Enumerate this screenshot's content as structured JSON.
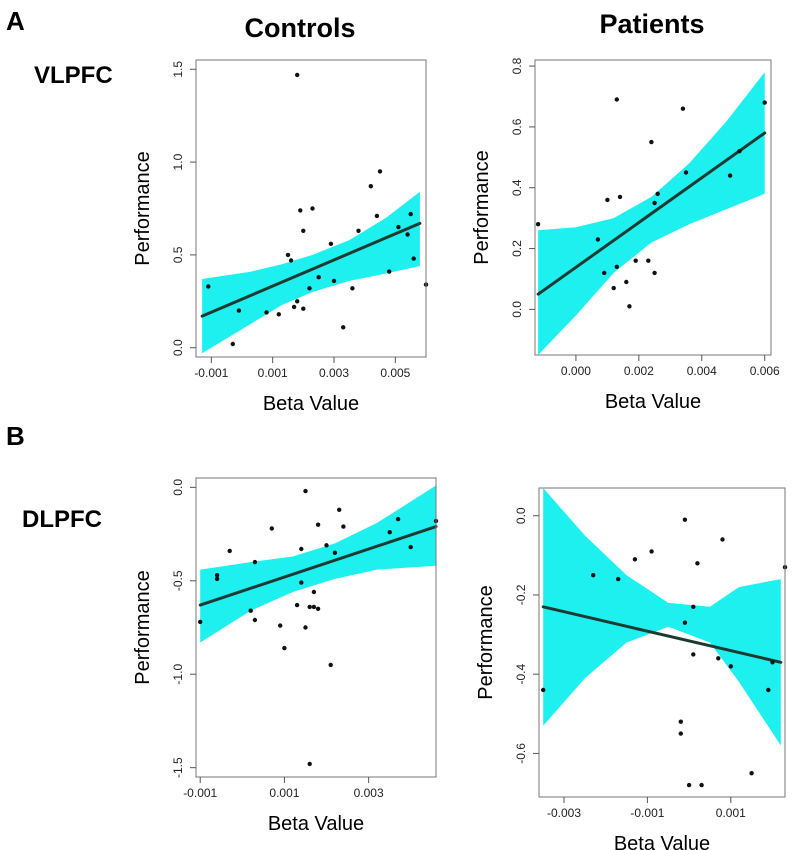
{
  "figure": {
    "panel_labels": [
      "A",
      "B"
    ],
    "column_titles": [
      "Controls",
      "Patients"
    ],
    "row_labels": [
      "VLPFC",
      "DLPFC"
    ],
    "band_color": "#1ef0f0",
    "line_color": "#1c3a32",
    "point_color": "#111111"
  },
  "chart_data": [
    {
      "type": "scatter",
      "region": "VLPFC",
      "group": "Controls",
      "xlabel": "Beta Value",
      "ylabel": "Performance",
      "xlim": [
        -0.0015,
        0.006
      ],
      "ylim": [
        -0.05,
        1.55
      ],
      "xticks": [
        -0.001,
        0.001,
        0.003,
        0.005
      ],
      "xtick_labels": [
        "-0.001",
        "0.001",
        "0.003",
        "0.005"
      ],
      "yticks": [
        0.0,
        0.5,
        1.0,
        1.5
      ],
      "ytick_labels": [
        "0.0",
        "0.5",
        "1.0",
        "1.5"
      ],
      "fit": {
        "x": [
          -0.0013,
          0.0058
        ],
        "y": [
          0.17,
          0.67
        ]
      },
      "band": {
        "x": [
          -0.0013,
          0.0003,
          0.0013,
          0.0023,
          0.0035,
          0.0047,
          0.0058
        ],
        "upper": [
          0.37,
          0.41,
          0.45,
          0.5,
          0.58,
          0.7,
          0.84
        ],
        "lower": [
          -0.03,
          0.13,
          0.23,
          0.3,
          0.36,
          0.4,
          0.44
        ]
      },
      "points": [
        {
          "x": -0.0011,
          "y": 0.33
        },
        {
          "x": -0.0003,
          "y": 0.02
        },
        {
          "x": -0.0001,
          "y": 0.2
        },
        {
          "x": 0.0008,
          "y": 0.19
        },
        {
          "x": 0.0012,
          "y": 0.18
        },
        {
          "x": 0.0015,
          "y": 0.5
        },
        {
          "x": 0.0016,
          "y": 0.47
        },
        {
          "x": 0.0017,
          "y": 0.22
        },
        {
          "x": 0.0018,
          "y": 0.25
        },
        {
          "x": 0.0018,
          "y": 1.47
        },
        {
          "x": 0.0019,
          "y": 0.74
        },
        {
          "x": 0.002,
          "y": 0.21
        },
        {
          "x": 0.002,
          "y": 0.63
        },
        {
          "x": 0.0022,
          "y": 0.32
        },
        {
          "x": 0.0023,
          "y": 0.75
        },
        {
          "x": 0.0025,
          "y": 0.38
        },
        {
          "x": 0.0029,
          "y": 0.56
        },
        {
          "x": 0.003,
          "y": 0.36
        },
        {
          "x": 0.0033,
          "y": 0.11
        },
        {
          "x": 0.0036,
          "y": 0.32
        },
        {
          "x": 0.0038,
          "y": 0.63
        },
        {
          "x": 0.0042,
          "y": 0.87
        },
        {
          "x": 0.0044,
          "y": 0.71
        },
        {
          "x": 0.0045,
          "y": 0.95
        },
        {
          "x": 0.0048,
          "y": 0.41
        },
        {
          "x": 0.0051,
          "y": 0.65
        },
        {
          "x": 0.0054,
          "y": 0.61
        },
        {
          "x": 0.0055,
          "y": 0.72
        },
        {
          "x": 0.0056,
          "y": 0.48
        },
        {
          "x": 0.006,
          "y": 0.34
        }
      ]
    },
    {
      "type": "scatter",
      "region": "VLPFC",
      "group": "Patients",
      "xlabel": "Beta Value",
      "ylabel": "Performance",
      "xlim": [
        -0.0013,
        0.0062
      ],
      "ylim": [
        -0.15,
        0.82
      ],
      "xticks": [
        0.0,
        0.002,
        0.004,
        0.006
      ],
      "xtick_labels": [
        "0.000",
        "0.002",
        "0.004",
        "0.006"
      ],
      "yticks": [
        0.0,
        0.2,
        0.4,
        0.6,
        0.8
      ],
      "ytick_labels": [
        "0.0",
        "0.2",
        "0.4",
        "0.6",
        "0.8"
      ],
      "fit": {
        "x": [
          -0.0012,
          0.006
        ],
        "y": [
          0.05,
          0.58
        ]
      },
      "band": {
        "x": [
          -0.0012,
          0.0,
          0.0012,
          0.0024,
          0.0036,
          0.0048,
          0.006
        ],
        "upper": [
          0.26,
          0.27,
          0.3,
          0.37,
          0.48,
          0.62,
          0.78
        ],
        "lower": [
          -0.15,
          -0.02,
          0.12,
          0.22,
          0.28,
          0.33,
          0.38
        ]
      },
      "points": [
        {
          "x": -0.0012,
          "y": 0.28
        },
        {
          "x": 0.0007,
          "y": 0.23
        },
        {
          "x": 0.0009,
          "y": 0.12
        },
        {
          "x": 0.001,
          "y": 0.36
        },
        {
          "x": 0.0012,
          "y": 0.07
        },
        {
          "x": 0.0013,
          "y": 0.69
        },
        {
          "x": 0.0013,
          "y": 0.14
        },
        {
          "x": 0.0014,
          "y": 0.37
        },
        {
          "x": 0.0016,
          "y": 0.09
        },
        {
          "x": 0.0017,
          "y": 0.01
        },
        {
          "x": 0.0019,
          "y": 0.16
        },
        {
          "x": 0.0023,
          "y": 0.16
        },
        {
          "x": 0.0024,
          "y": 0.55
        },
        {
          "x": 0.0025,
          "y": 0.35
        },
        {
          "x": 0.0025,
          "y": 0.12
        },
        {
          "x": 0.0026,
          "y": 0.38
        },
        {
          "x": 0.0034,
          "y": 0.66
        },
        {
          "x": 0.0035,
          "y": 0.45
        },
        {
          "x": 0.0049,
          "y": 0.44
        },
        {
          "x": 0.0052,
          "y": 0.52
        },
        {
          "x": 0.006,
          "y": 0.68
        }
      ]
    },
    {
      "type": "scatter",
      "region": "DLPFC",
      "group": "Controls",
      "xlabel": "Beta Value",
      "ylabel": "Performance",
      "xlim": [
        -0.0011,
        0.0046
      ],
      "ylim": [
        -1.55,
        0.05
      ],
      "xticks": [
        -0.001,
        0.001,
        0.003
      ],
      "xtick_labels": [
        "-0.001",
        "0.001",
        "0.003"
      ],
      "yticks": [
        0.0,
        -0.5,
        -1.0,
        -1.5
      ],
      "ytick_labels": [
        "0.0",
        "-0.5",
        "-1.0",
        "-1.5"
      ],
      "fit": {
        "x": [
          -0.001,
          0.0046
        ],
        "y": [
          -0.63,
          -0.21
        ]
      },
      "band": {
        "x": [
          -0.001,
          0.0002,
          0.0012,
          0.0022,
          0.0032,
          0.0046
        ],
        "upper": [
          -0.44,
          -0.4,
          -0.37,
          -0.3,
          -0.19,
          0.01
        ],
        "lower": [
          -0.83,
          -0.66,
          -0.56,
          -0.49,
          -0.44,
          -0.42
        ]
      },
      "points": [
        {
          "x": -0.001,
          "y": -0.72
        },
        {
          "x": -0.0006,
          "y": -0.47
        },
        {
          "x": -0.0006,
          "y": -0.49
        },
        {
          "x": -0.0003,
          "y": -0.34
        },
        {
          "x": 0.0002,
          "y": -0.66
        },
        {
          "x": 0.0003,
          "y": -0.71
        },
        {
          "x": 0.0003,
          "y": -0.4
        },
        {
          "x": 0.0007,
          "y": -0.22
        },
        {
          "x": 0.0009,
          "y": -0.74
        },
        {
          "x": 0.001,
          "y": -0.86
        },
        {
          "x": 0.0013,
          "y": -0.63
        },
        {
          "x": 0.0014,
          "y": -0.33
        },
        {
          "x": 0.0014,
          "y": -0.51
        },
        {
          "x": 0.0015,
          "y": -0.75
        },
        {
          "x": 0.0015,
          "y": -0.02
        },
        {
          "x": 0.0016,
          "y": -0.64
        },
        {
          "x": 0.0017,
          "y": -0.64
        },
        {
          "x": 0.0016,
          "y": -1.48
        },
        {
          "x": 0.0017,
          "y": -0.56
        },
        {
          "x": 0.0018,
          "y": -0.65
        },
        {
          "x": 0.0018,
          "y": -0.2
        },
        {
          "x": 0.002,
          "y": -0.31
        },
        {
          "x": 0.0021,
          "y": -0.95
        },
        {
          "x": 0.0022,
          "y": -0.35
        },
        {
          "x": 0.0023,
          "y": -0.12
        },
        {
          "x": 0.0024,
          "y": -0.21
        },
        {
          "x": 0.0035,
          "y": -0.24
        },
        {
          "x": 0.0037,
          "y": -0.17
        },
        {
          "x": 0.004,
          "y": -0.32
        },
        {
          "x": 0.0046,
          "y": -0.18
        }
      ]
    },
    {
      "type": "scatter",
      "region": "DLPFC",
      "group": "Patients",
      "xlabel": "Beta Value",
      "ylabel": "Performance",
      "xlim": [
        -0.0036,
        0.0023
      ],
      "ylim": [
        -0.71,
        0.07
      ],
      "xticks": [
        -0.003,
        -0.001,
        0.001
      ],
      "xtick_labels": [
        "-0.003",
        "-0.001",
        "0.001"
      ],
      "yticks": [
        0.0,
        -0.2,
        -0.4,
        -0.6
      ],
      "ytick_labels": [
        "0.0",
        "-0.2",
        "-0.4",
        "-0.6"
      ],
      "fit": {
        "x": [
          -0.0035,
          0.0022
        ],
        "y": [
          -0.23,
          -0.37
        ]
      },
      "band": {
        "x": [
          -0.0035,
          -0.0025,
          -0.0015,
          -0.0005,
          0.0005,
          0.0012,
          0.0022
        ],
        "upper": [
          0.07,
          -0.05,
          -0.15,
          -0.22,
          -0.23,
          -0.18,
          -0.16
        ],
        "lower": [
          -0.53,
          -0.41,
          -0.32,
          -0.28,
          -0.32,
          -0.42,
          -0.58
        ]
      },
      "points": [
        {
          "x": -0.0035,
          "y": -0.44
        },
        {
          "x": -0.0023,
          "y": -0.15
        },
        {
          "x": -0.0017,
          "y": -0.16
        },
        {
          "x": -0.0013,
          "y": -0.11
        },
        {
          "x": -0.0009,
          "y": -0.09
        },
        {
          "x": -0.0002,
          "y": -0.55
        },
        {
          "x": -0.0002,
          "y": -0.52
        },
        {
          "x": -0.0001,
          "y": -0.01
        },
        {
          "x": -0.0001,
          "y": -0.27
        },
        {
          "x": 0.0,
          "y": -0.68
        },
        {
          "x": 0.0001,
          "y": -0.23
        },
        {
          "x": 0.0001,
          "y": -0.35
        },
        {
          "x": 0.0002,
          "y": -0.12
        },
        {
          "x": 0.0003,
          "y": -0.68
        },
        {
          "x": 0.0007,
          "y": -0.36
        },
        {
          "x": 0.0008,
          "y": -0.06
        },
        {
          "x": 0.001,
          "y": -0.38
        },
        {
          "x": 0.0015,
          "y": -0.65
        },
        {
          "x": 0.0019,
          "y": -0.44
        },
        {
          "x": 0.002,
          "y": -0.37
        },
        {
          "x": 0.0023,
          "y": -0.13
        }
      ]
    }
  ]
}
